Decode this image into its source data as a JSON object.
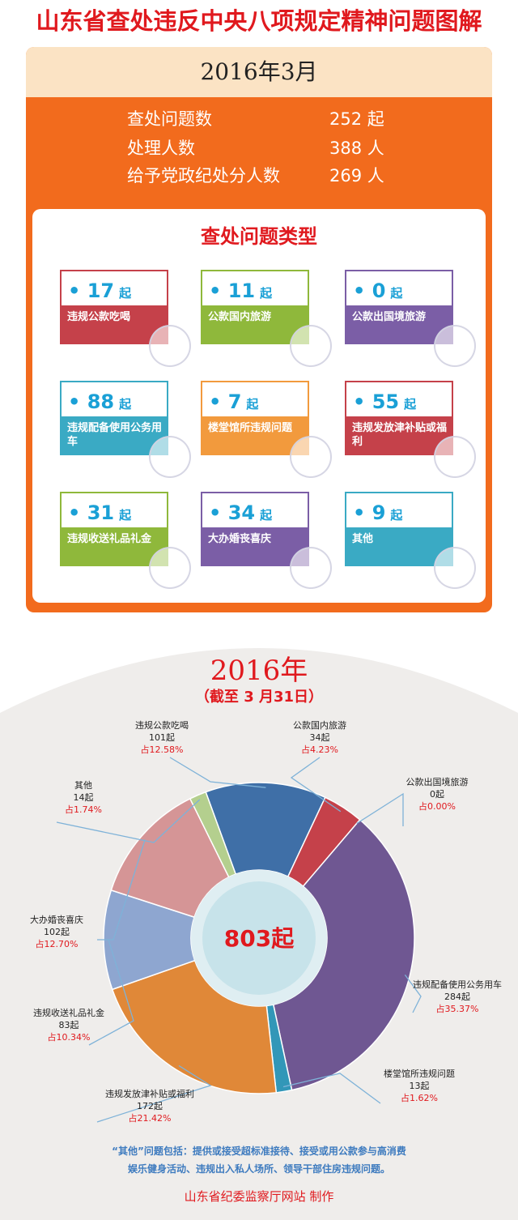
{
  "title": "山东省查处违反中央八项规定精神问题图解",
  "month": {
    "date_label": "2016年3月",
    "stats": [
      {
        "label": "查处问题数",
        "value": "252 起"
      },
      {
        "label": "处理人数",
        "value": "388 人"
      },
      {
        "label": "给予党政纪处分人数",
        "value": "269 人"
      }
    ],
    "types_title": "查处问题类型",
    "types": [
      {
        "num": "17",
        "unit": "起",
        "label": "违规公款吃喝",
        "color": "#c5414a"
      },
      {
        "num": "11",
        "unit": "起",
        "label": "公款国内旅游",
        "color": "#8fb83b"
      },
      {
        "num": "0",
        "unit": "起",
        "label": "公款出国境旅游",
        "color": "#7b5ea6"
      },
      {
        "num": "88",
        "unit": "起",
        "label": "违规配备使用公务用车",
        "color": "#3aaac4"
      },
      {
        "num": "7",
        "unit": "起",
        "label": "楼堂馆所违规问题",
        "color": "#f29a3d"
      },
      {
        "num": "55",
        "unit": "起",
        "label": "违规发放津补贴或福利",
        "color": "#c5414a"
      },
      {
        "num": "31",
        "unit": "起",
        "label": "违规收送礼品礼金",
        "color": "#8fb83b"
      },
      {
        "num": "34",
        "unit": "起",
        "label": "大办婚丧喜庆",
        "color": "#7b5ea6"
      },
      {
        "num": "9",
        "unit": "起",
        "label": "其他",
        "color": "#3aaac4"
      }
    ]
  },
  "year": {
    "title": "2016年",
    "subtitle": "（截至 3 月31日）",
    "total": "803起"
  },
  "chart_data": {
    "type": "pie",
    "total_label": "803起",
    "slices": [
      {
        "label": "违规公款吃喝",
        "count": "101起",
        "value": 101,
        "pct": "占12.58%",
        "color": "#3f6fa7"
      },
      {
        "label": "公款国内旅游",
        "count": "34起",
        "value": 34,
        "pct": "占4.23%",
        "color": "#c5414a"
      },
      {
        "label": "公款出国境旅游",
        "count": "0起",
        "value": 0,
        "pct": "占0.00%",
        "color": "#7b5ea6"
      },
      {
        "label": "违规配备使用公务用车",
        "count": "284起",
        "value": 284,
        "pct": "占35.37%",
        "color": "#6f5792"
      },
      {
        "label": "楼堂馆所违规问题",
        "count": "13起",
        "value": 13,
        "pct": "占1.62%",
        "color": "#3297b8"
      },
      {
        "label": "违规发放津补贴或福利",
        "count": "172起",
        "value": 172,
        "pct": "占21.42%",
        "color": "#e08838"
      },
      {
        "label": "违规收送礼品礼金",
        "count": "83起",
        "value": 83,
        "pct": "占10.34%",
        "color": "#8ea6d0"
      },
      {
        "label": "大办婚丧喜庆",
        "count": "102起",
        "value": 102,
        "pct": "占12.70%",
        "color": "#d59596"
      },
      {
        "label": "其他",
        "count": "14起",
        "value": 14,
        "pct": "占1.74%",
        "color": "#b4cf8e"
      }
    ]
  },
  "note_line1": "“其他”问题包括：提供或接受超标准接待、接受或用公款参与高消费",
  "note_line2": "娱乐健身活动、违规出入私人场所、领导干部住房违规问题。",
  "footer": "山东省纪委监察厅网站  制作"
}
